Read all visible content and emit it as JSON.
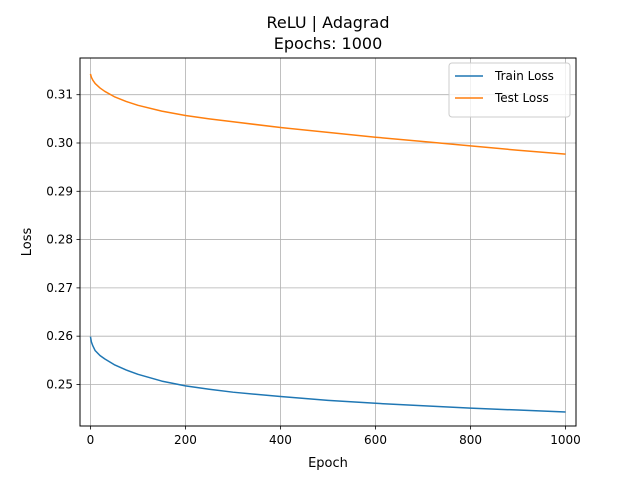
{
  "chart_data": {
    "type": "line",
    "title": "ReLU | Adagrad",
    "subtitle": "Epochs: 1000",
    "xlabel": "Epoch",
    "ylabel": "Loss",
    "xlim": [
      -22,
      1022
    ],
    "ylim": [
      0.2414,
      0.3176
    ],
    "xticks": [
      0,
      200,
      400,
      600,
      800,
      1000
    ],
    "yticks": [
      0.25,
      0.26,
      0.27,
      0.28,
      0.29,
      0.3,
      0.31
    ],
    "grid": true,
    "legend_position": "top-right",
    "series": [
      {
        "name": "Train Loss",
        "color": "#1f77b4",
        "x": [
          0,
          2,
          5,
          10,
          20,
          30,
          50,
          75,
          100,
          150,
          200,
          250,
          300,
          400,
          500,
          600,
          700,
          800,
          900,
          1000
        ],
        "y": [
          0.2599,
          0.2588,
          0.258,
          0.257,
          0.256,
          0.2553,
          0.2541,
          0.253,
          0.2521,
          0.2507,
          0.2497,
          0.249,
          0.2484,
          0.2475,
          0.2467,
          0.2461,
          0.2456,
          0.2451,
          0.2447,
          0.2443
        ]
      },
      {
        "name": "Test Loss",
        "color": "#ff7f0e",
        "x": [
          0,
          2,
          5,
          10,
          20,
          30,
          50,
          75,
          100,
          150,
          200,
          250,
          300,
          400,
          500,
          600,
          700,
          800,
          900,
          1000
        ],
        "y": [
          0.3143,
          0.3136,
          0.313,
          0.3123,
          0.3114,
          0.3107,
          0.3096,
          0.3086,
          0.3078,
          0.3066,
          0.3057,
          0.305,
          0.3044,
          0.3032,
          0.3022,
          0.3012,
          0.3003,
          0.2994,
          0.2985,
          0.2977
        ]
      }
    ]
  }
}
